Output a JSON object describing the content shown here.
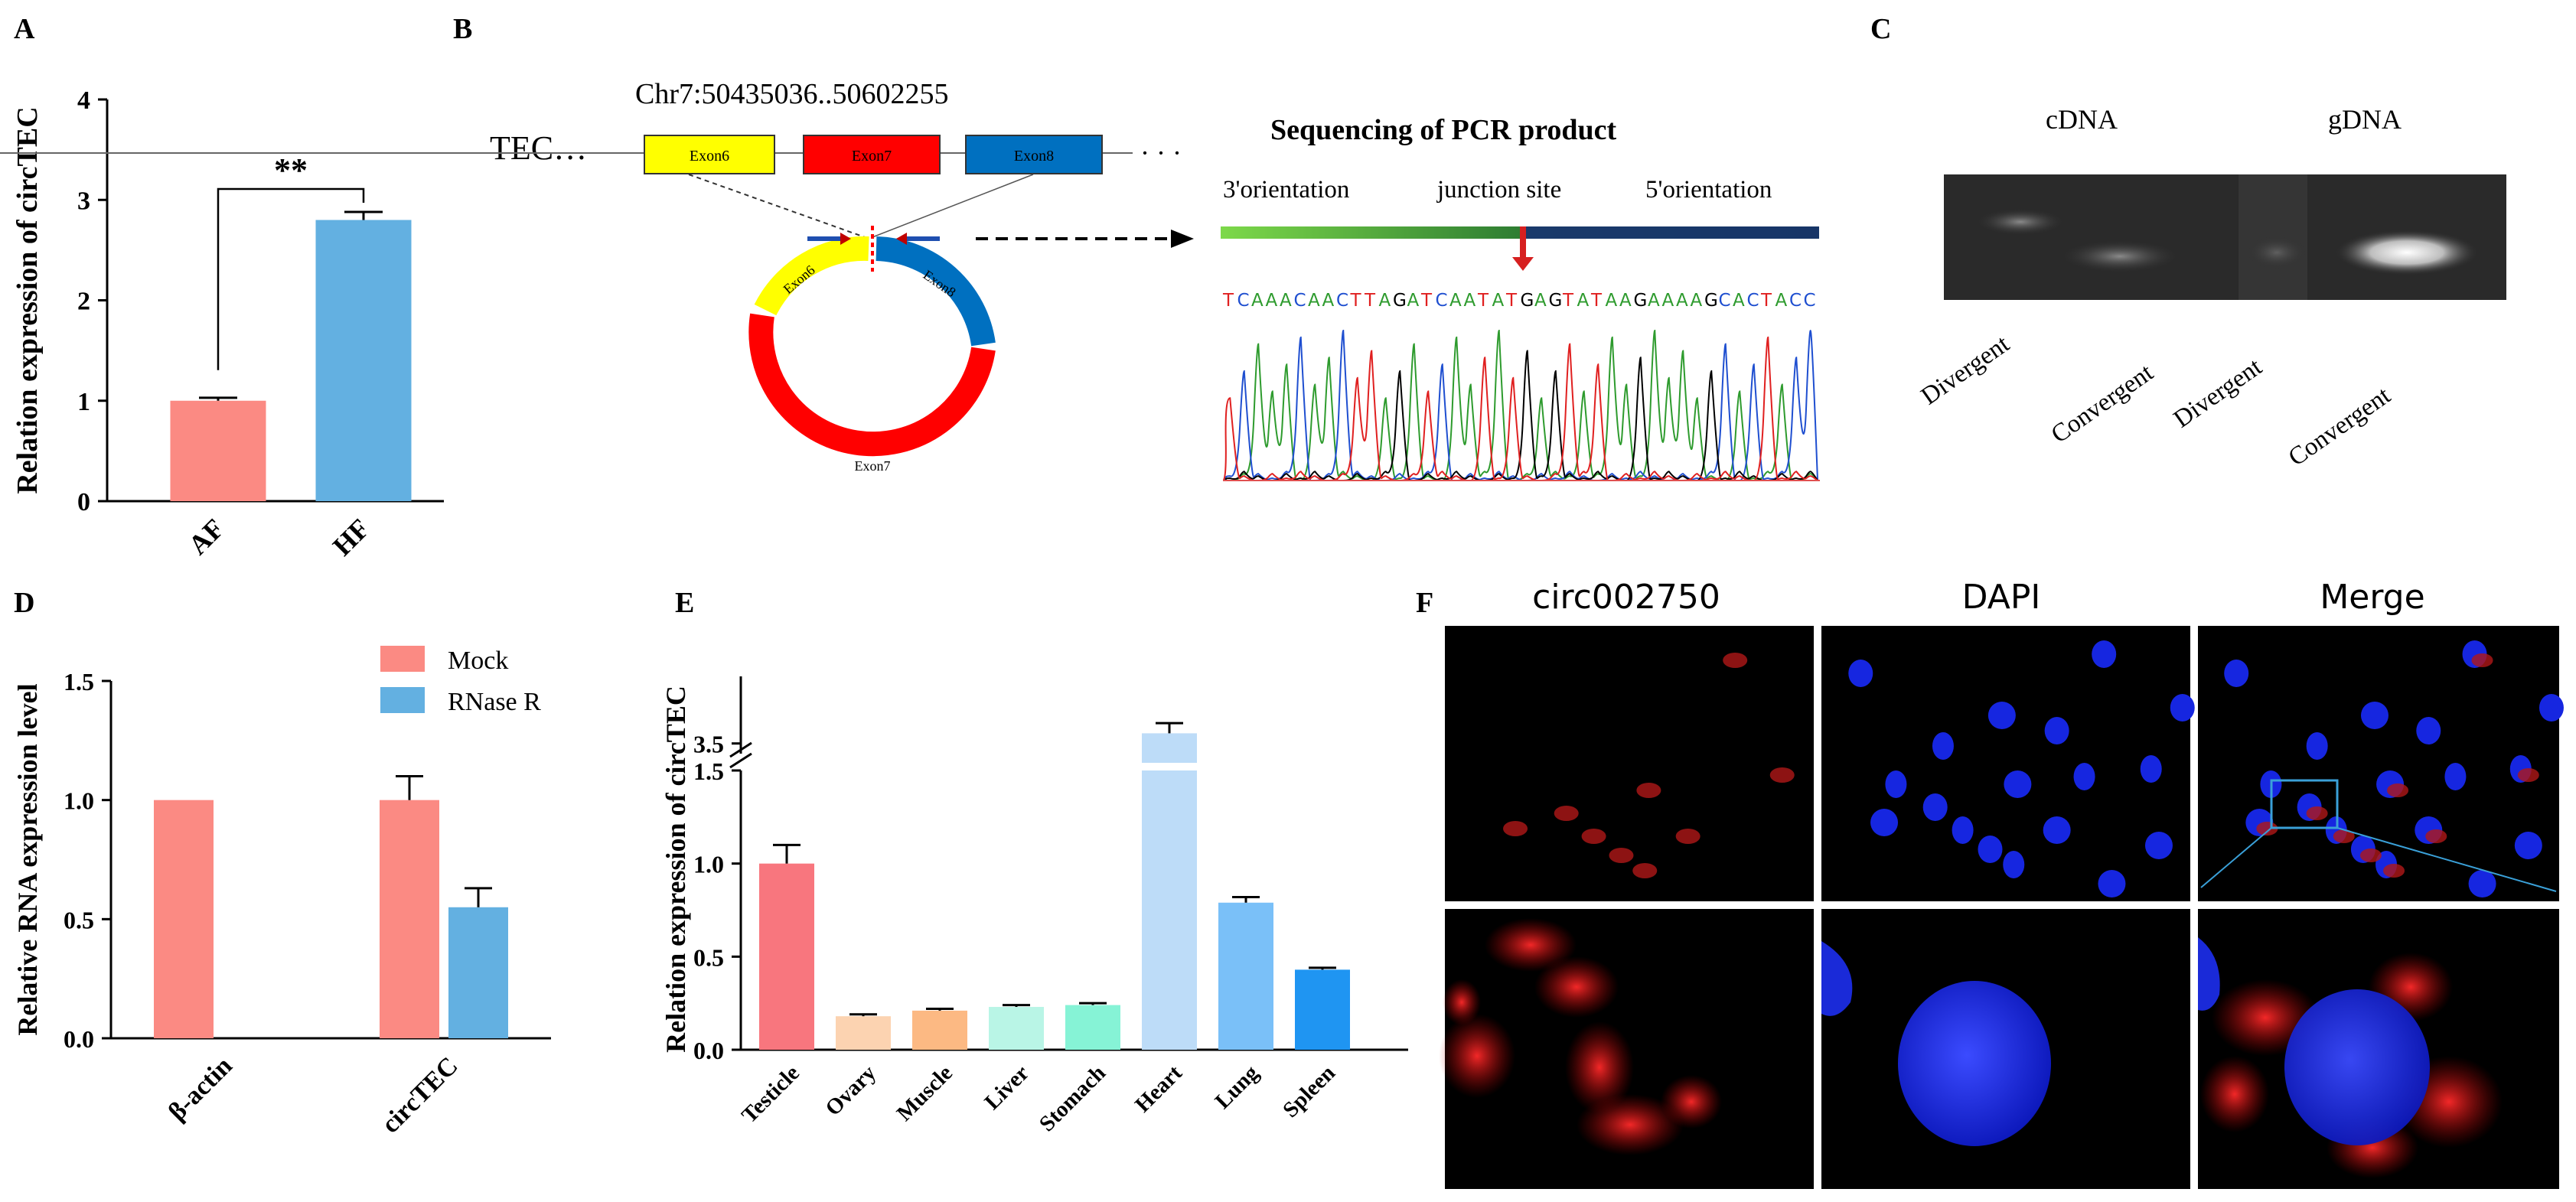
{
  "panel_letters": {
    "A": "A",
    "B": "B",
    "C": "C",
    "D": "D",
    "E": "E",
    "F": "F"
  },
  "panel_b": {
    "coordinate": "Chr7:50435036..50602255",
    "gene": "TEC…",
    "trailing": "· · ·",
    "exons": [
      "Exon6",
      "Exon7",
      "Exon8"
    ],
    "ring_labels": [
      "Exon6",
      "Exon8",
      "Exon7"
    ],
    "seq_title": "Sequencing of PCR product",
    "seq_labels": [
      "3'orientation",
      "junction site",
      "5'orientation"
    ],
    "sequence": "TCAAACAACTTAGATCAATATGAGTATAAGAAAAGCACTACC",
    "colors": {
      "exon6": "#ffff00",
      "exon7": "#ff0000",
      "exon8": "#0070c0"
    }
  },
  "panel_c": {
    "groups": [
      "cDNA",
      "gDNA"
    ],
    "lanes": [
      "Divergent",
      "Convergent",
      "Divergent",
      "Convergent"
    ]
  },
  "panel_f": {
    "headers": [
      "circ002750",
      "DAPI",
      "Merge"
    ]
  },
  "chart_data": [
    {
      "panel": "A",
      "type": "bar",
      "categories": [
        "AF",
        "HF"
      ],
      "values": [
        1.0,
        2.8
      ],
      "errors": [
        0.03,
        0.08
      ],
      "colors": [
        "#fb8a83",
        "#63b0e1"
      ],
      "ylabel": "Relation expression of circTEC",
      "ylim": [
        0,
        4
      ],
      "yticks": [
        "0",
        "1",
        "2",
        "3",
        "4"
      ],
      "significance": "**"
    },
    {
      "panel": "D",
      "type": "bar",
      "categories": [
        "β-actin",
        "circTEC"
      ],
      "series": [
        {
          "name": "Mock",
          "values": [
            1.0,
            1.0
          ],
          "errors": [
            0,
            0.1
          ],
          "color": "#fb8a83"
        },
        {
          "name": "RNase R",
          "values": [
            null,
            0.55
          ],
          "errors": [
            null,
            0.08
          ],
          "color": "#63b0e1"
        }
      ],
      "ylabel": "Relative RNA expression level",
      "ylim": [
        0,
        1.5
      ],
      "yticks": [
        "0.0",
        "0.5",
        "1.0",
        "1.5"
      ],
      "legend": "top-right"
    },
    {
      "panel": "E",
      "type": "bar",
      "categories": [
        "Testicle",
        "Ovary",
        "Muscle",
        "Liver",
        "Stomach",
        "Heart",
        "Lung",
        "Spleen"
      ],
      "values": [
        1.0,
        0.18,
        0.21,
        0.23,
        0.24,
        3.55,
        0.79,
        0.43
      ],
      "errors": [
        0.1,
        0.01,
        0.01,
        0.01,
        0.01,
        0.05,
        0.03,
        0.01
      ],
      "colors": [
        "#f8767e",
        "#fcd3b1",
        "#fcb983",
        "#b9f5e6",
        "#86f3d6",
        "#bddcf8",
        "#7ac0f8",
        "#1f95f2"
      ],
      "ylabel": "Relation expression of circTEC",
      "ylim": [
        0,
        1.5
      ],
      "yticks": [
        "0.0",
        "0.5",
        "1.0",
        "1.5",
        "3.5"
      ],
      "axis_break": true
    }
  ]
}
